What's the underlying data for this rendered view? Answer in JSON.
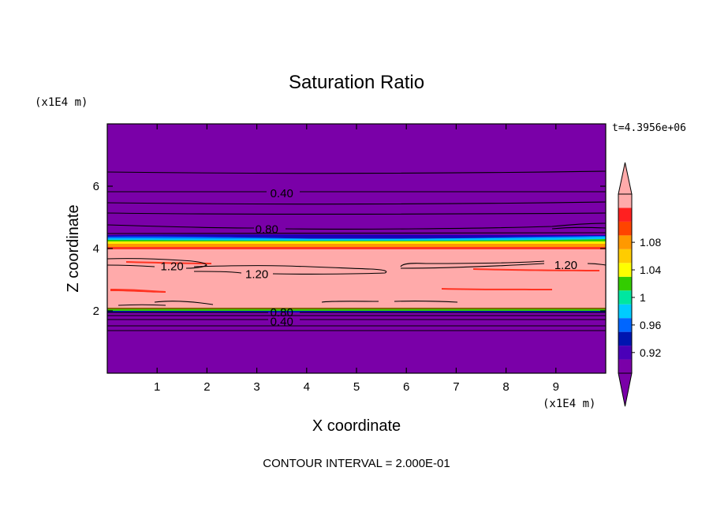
{
  "chart_data": {
    "type": "contour",
    "title": "Saturation Ratio",
    "xlabel": "X coordinate",
    "ylabel": "Z coordinate",
    "x_unit": "(x1E4 m)",
    "y_unit": "(x1E4 m)",
    "time_label": "t=4.3956e+06",
    "footer": "CONTOUR INTERVAL = 2.000E-01",
    "xlim": [
      0,
      10
    ],
    "ylim": [
      0,
      8
    ],
    "x_ticks": [
      1,
      2,
      3,
      4,
      5,
      6,
      7,
      8,
      9
    ],
    "x_tick_labels": [
      "1",
      "2",
      "3",
      "4",
      "5",
      "6",
      "7",
      "8",
      "9"
    ],
    "y_ticks": [
      2,
      4,
      6
    ],
    "y_tick_labels": [
      "2",
      "4",
      "6"
    ],
    "contour_labels": [
      {
        "text": "0.40",
        "x": 3.5,
        "z": 5.8
      },
      {
        "text": "0.80",
        "x": 3.2,
        "z": 4.65
      },
      {
        "text": "1.20",
        "x": 1.3,
        "z": 3.45
      },
      {
        "text": "1.20",
        "x": 3.0,
        "z": 3.2
      },
      {
        "text": "1.20",
        "x": 9.2,
        "z": 3.5
      },
      {
        "text": "0.80",
        "x": 3.5,
        "z": 1.97
      },
      {
        "text": "0.40",
        "x": 3.5,
        "z": 1.68
      }
    ],
    "colorbar": {
      "levels": [
        0.92,
        0.96,
        1,
        1.04,
        1.08
      ],
      "level_labels": [
        "0.92",
        "0.96",
        "1",
        "1.04",
        "1.08"
      ],
      "colors": [
        "#7a00a8",
        "#4a00b8",
        "#0015b0",
        "#0066ff",
        "#00ccff",
        "#00e6a0",
        "#33cc00",
        "#ffff00",
        "#ffcc00",
        "#ff9900",
        "#ff4400",
        "#ff2020",
        "#ffaaaa"
      ],
      "under_color": "#7a00a8",
      "over_color": "#ffaaaa"
    }
  }
}
